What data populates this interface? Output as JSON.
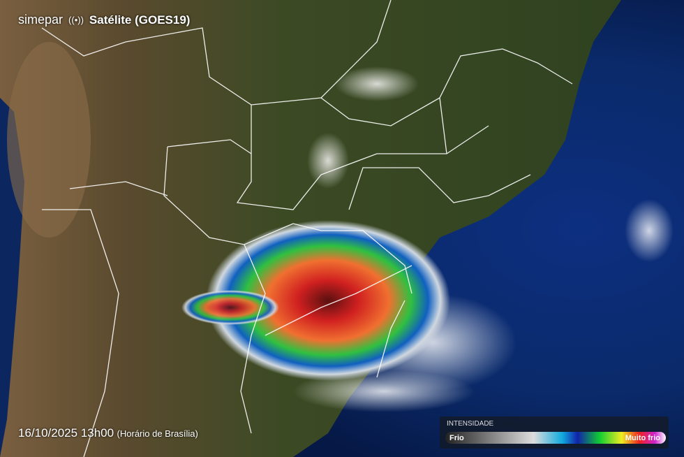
{
  "header": {
    "brand": "simepar",
    "title": "Satélite (GOES19)"
  },
  "footer": {
    "timestamp": "16/10/2025 13h00",
    "timezone": "(Horário de Brasília)"
  },
  "legend": {
    "title": "INTENSIDADE",
    "low": "Frio",
    "high": "Muito frio"
  }
}
